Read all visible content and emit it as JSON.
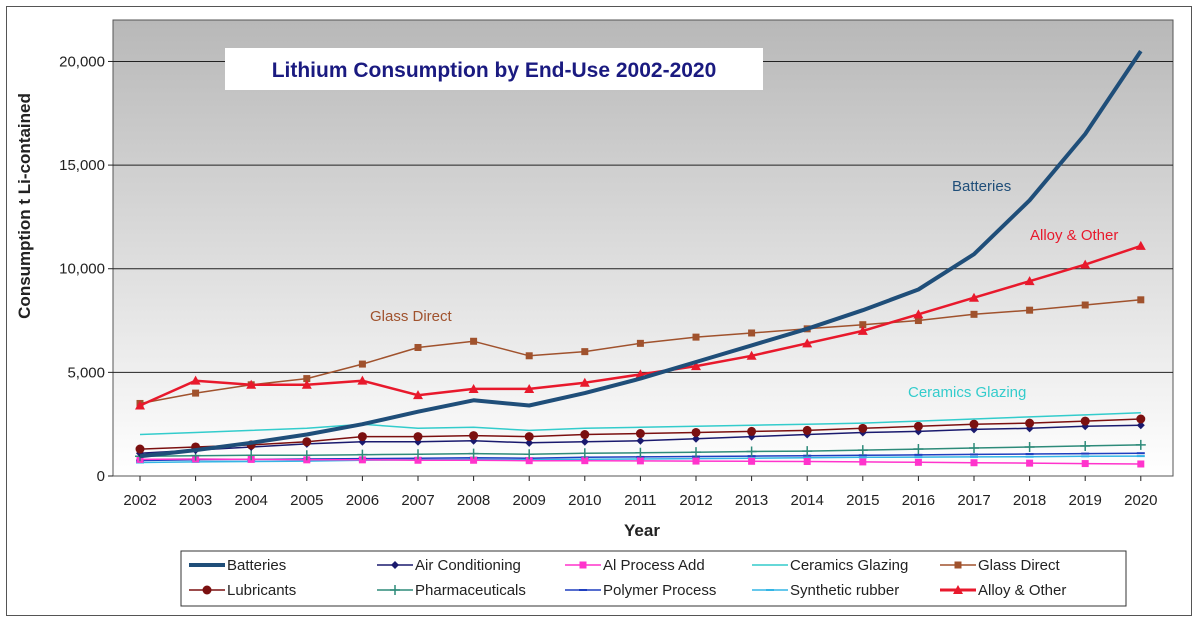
{
  "chart_data": {
    "type": "line",
    "title": "Lithium Consumption by End-Use 2002-2020",
    "xlabel": "Year",
    "ylabel": "Consumption t Li-contained",
    "ylim": [
      0,
      22000
    ],
    "y_ticks": [
      0,
      5000,
      10000,
      15000,
      20000
    ],
    "y_tick_labels": [
      "0",
      "5,000",
      "10,000",
      "15,000",
      "20,000"
    ],
    "x": [
      "2002",
      "2003",
      "2004",
      "2005",
      "2006",
      "2007",
      "2008",
      "2009",
      "2010",
      "2011",
      "2012",
      "2013",
      "2014",
      "2015",
      "2016",
      "2017",
      "2018",
      "2019",
      "2020"
    ],
    "grid": true,
    "legend_placement": "bottom",
    "series": [
      {
        "name": "Batteries",
        "color": "#1f4e79",
        "marker": "none",
        "values": [
          950,
          1250,
          1600,
          2000,
          2500,
          3100,
          3650,
          3400,
          4000,
          4700,
          5500,
          6300,
          7100,
          8000,
          9000,
          10700,
          13300,
          16500,
          20500
        ]
      },
      {
        "name": "Air Conditioning",
        "color": "#1a1a6e",
        "marker": "diamond",
        "values": [
          1100,
          1250,
          1400,
          1550,
          1650,
          1650,
          1700,
          1600,
          1650,
          1700,
          1800,
          1900,
          2000,
          2100,
          2150,
          2250,
          2300,
          2400,
          2450
        ]
      },
      {
        "name": "Al Process Add",
        "color": "#ff33cc",
        "marker": "square",
        "values": [
          800,
          820,
          800,
          780,
          780,
          760,
          760,
          740,
          740,
          730,
          720,
          710,
          700,
          680,
          660,
          640,
          620,
          600,
          580
        ]
      },
      {
        "name": "Ceramics Glazing",
        "color": "#33cccc",
        "marker": "none",
        "values": [
          2000,
          2100,
          2200,
          2300,
          2500,
          2300,
          2350,
          2200,
          2300,
          2350,
          2400,
          2450,
          2500,
          2550,
          2650,
          2750,
          2850,
          2950,
          3050
        ]
      },
      {
        "name": "Glass Direct",
        "color": "#a0522d",
        "marker": "square",
        "values": [
          3500,
          4000,
          4400,
          4700,
          5400,
          6200,
          6500,
          5800,
          6000,
          6400,
          6700,
          6900,
          7100,
          7300,
          7500,
          7800,
          8000,
          8250,
          8500
        ]
      },
      {
        "name": "Lubricants",
        "color": "#7b1010",
        "marker": "circle",
        "values": [
          1300,
          1400,
          1500,
          1650,
          1900,
          1900,
          1950,
          1900,
          2000,
          2050,
          2100,
          2150,
          2200,
          2300,
          2400,
          2500,
          2550,
          2650,
          2750
        ]
      },
      {
        "name": "Pharmaceuticals",
        "color": "#2e8b7a",
        "marker": "plus",
        "values": [
          950,
          980,
          1000,
          1000,
          1030,
          1050,
          1080,
          1050,
          1100,
          1120,
          1150,
          1180,
          1200,
          1250,
          1300,
          1350,
          1400,
          1450,
          1500
        ]
      },
      {
        "name": "Polymer Process",
        "color": "#1f3fbf",
        "marker": "dash",
        "values": [
          750,
          780,
          800,
          820,
          840,
          860,
          880,
          860,
          900,
          920,
          940,
          960,
          980,
          1000,
          1020,
          1040,
          1060,
          1080,
          1100
        ]
      },
      {
        "name": "Synthetic rubber",
        "color": "#33b5e5",
        "marker": "dash",
        "values": [
          650,
          680,
          700,
          720,
          760,
          780,
          800,
          780,
          810,
          820,
          840,
          860,
          880,
          900,
          910,
          920,
          930,
          950,
          960
        ]
      },
      {
        "name": "Alloy & Other",
        "color": "#e8192c",
        "marker": "triangle",
        "values": [
          3400,
          4600,
          4400,
          4400,
          4600,
          3900,
          4200,
          4200,
          4500,
          4900,
          5300,
          5800,
          6400,
          7000,
          7800,
          8600,
          9400,
          10200,
          11100
        ]
      }
    ],
    "annotations": [
      {
        "text": "Batteries",
        "color": "#1f4e79"
      },
      {
        "text": "Alloy & Other",
        "color": "#e8192c"
      },
      {
        "text": "Glass Direct",
        "color": "#a0522d"
      },
      {
        "text": "Ceramics Glazing",
        "color": "#33cccc"
      }
    ]
  }
}
